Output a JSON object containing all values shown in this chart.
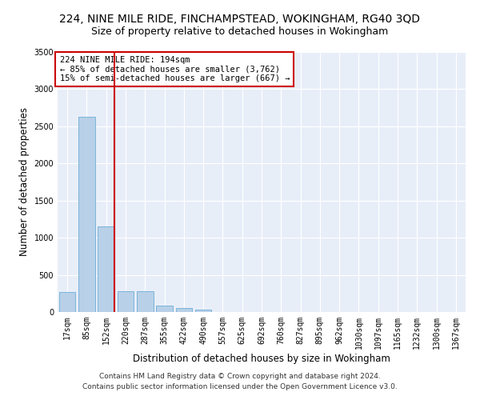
{
  "title_line1": "224, NINE MILE RIDE, FINCHAMPSTEAD, WOKINGHAM, RG40 3QD",
  "title_line2": "Size of property relative to detached houses in Wokingham",
  "xlabel": "Distribution of detached houses by size in Wokingham",
  "ylabel": "Number of detached properties",
  "footer_line1": "Contains HM Land Registry data © Crown copyright and database right 2024.",
  "footer_line2": "Contains public sector information licensed under the Open Government Licence v3.0.",
  "annotation_line1": "224 NINE MILE RIDE: 194sqm",
  "annotation_line2": "← 85% of detached houses are smaller (3,762)",
  "annotation_line3": "15% of semi-detached houses are larger (667) →",
  "bar_labels": [
    "17sqm",
    "85sqm",
    "152sqm",
    "220sqm",
    "287sqm",
    "355sqm",
    "422sqm",
    "490sqm",
    "557sqm",
    "625sqm",
    "692sqm",
    "760sqm",
    "827sqm",
    "895sqm",
    "962sqm",
    "1030sqm",
    "1097sqm",
    "1165sqm",
    "1232sqm",
    "1300sqm",
    "1367sqm"
  ],
  "bar_values": [
    270,
    2630,
    1150,
    280,
    280,
    90,
    55,
    35,
    0,
    0,
    0,
    0,
    0,
    0,
    0,
    0,
    0,
    0,
    0,
    0,
    0
  ],
  "bar_color": "#b8d0e8",
  "bar_edge_color": "#6baed6",
  "vline_x_index": 2,
  "vline_color": "#cc0000",
  "annotation_box_color": "#cc0000",
  "ylim": [
    0,
    3500
  ],
  "yticks": [
    0,
    500,
    1000,
    1500,
    2000,
    2500,
    3000,
    3500
  ],
  "background_color": "#e8eef8",
  "grid_color": "#ffffff",
  "title_fontsize": 10,
  "subtitle_fontsize": 9,
  "axis_label_fontsize": 8.5,
  "tick_fontsize": 7,
  "annotation_fontsize": 7.5,
  "footer_fontsize": 6.5
}
